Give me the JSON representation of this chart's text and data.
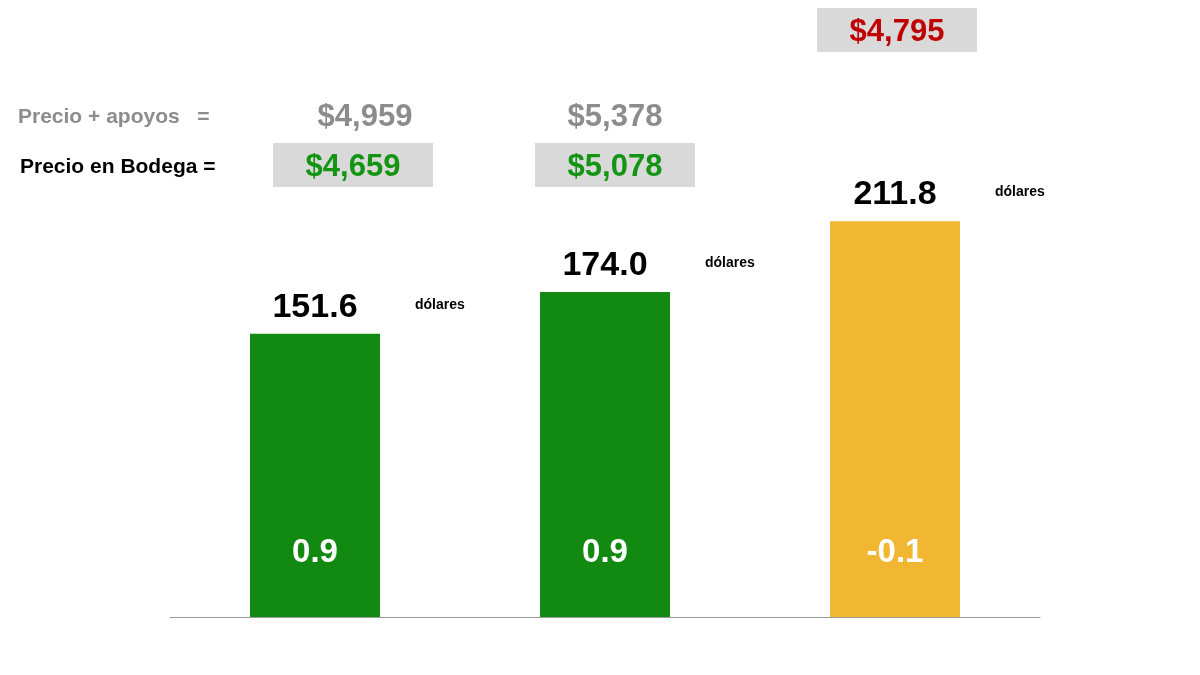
{
  "chart_data": {
    "type": "bar",
    "categories": [
      null,
      null,
      null
    ],
    "values": [
      151.6,
      174.0,
      211.8
    ],
    "colors": [
      "#128a12",
      "#128a12",
      "#f2b732"
    ],
    "value_labels": [
      "151.6",
      "174.0",
      "211.8"
    ],
    "annotations": [
      "Precio + apoyos   =",
      "Precio en Bodega =",
      "$4,959",
      "$5,378",
      "$4,659",
      "$5,078",
      "$4,795",
      "dólares",
      "dólares",
      "dólares",
      "0.9",
      "0.9",
      "-0.1"
    ]
  }
}
